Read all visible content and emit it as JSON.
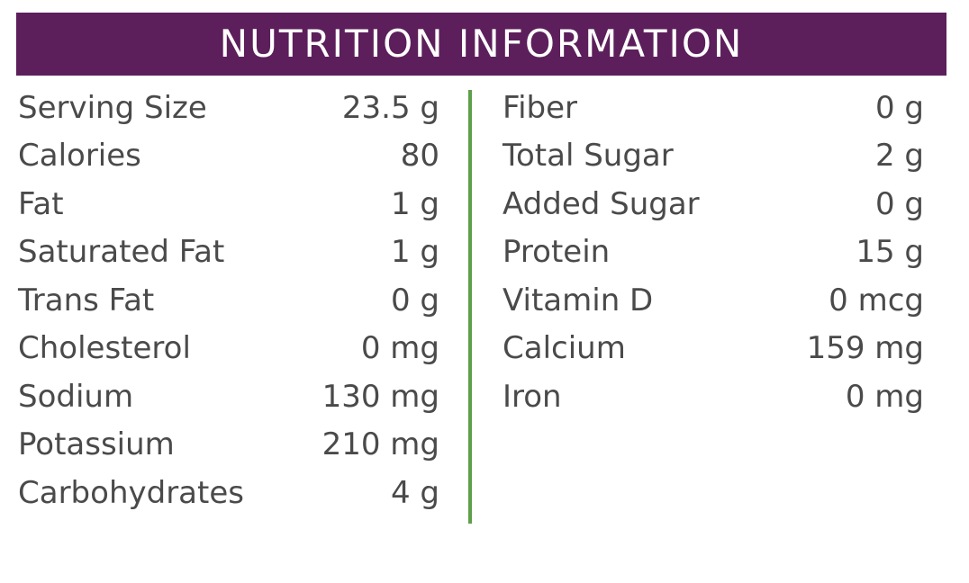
{
  "header": {
    "title": "NUTRITION INFORMATION",
    "background_color": "#5c1f5b"
  },
  "divider_color": "#5ea04a",
  "left_column": [
    {
      "label": "Serving Size",
      "value": "23.5 g"
    },
    {
      "label": "Calories",
      "value": "80"
    },
    {
      "label": "Fat",
      "value": "1 g"
    },
    {
      "label": "Saturated Fat",
      "value": "1 g"
    },
    {
      "label": "Trans Fat",
      "value": "0 g"
    },
    {
      "label": "Cholesterol",
      "value": "0 mg"
    },
    {
      "label": "Sodium",
      "value": "130 mg"
    },
    {
      "label": "Potassium",
      "value": "210 mg"
    },
    {
      "label": "Carbohydrates",
      "value": "4 g"
    }
  ],
  "right_column": [
    {
      "label": "Fiber",
      "value": "0 g"
    },
    {
      "label": "Total Sugar",
      "value": "2 g"
    },
    {
      "label": "Added Sugar",
      "value": "0 g"
    },
    {
      "label": "Protein",
      "value": "15 g"
    },
    {
      "label": "Vitamin D",
      "value": "0 mcg"
    },
    {
      "label": "Calcium",
      "value": "159 mg"
    },
    {
      "label": "Iron",
      "value": "0 mg"
    }
  ]
}
